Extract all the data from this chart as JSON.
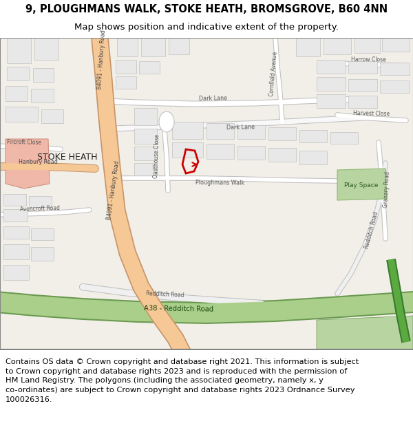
{
  "title_line1": "9, PLOUGHMANS WALK, STOKE HEATH, BROMSGROVE, B60 4NN",
  "title_line2": "Map shows position and indicative extent of the property.",
  "footer_text": "Contains OS data © Crown copyright and database right 2021. This information is subject\nto Crown copyright and database rights 2023 and is reproduced with the permission of\nHM Land Registry. The polygons (including the associated geometry, namely x, y\nco-ordinates) are subject to Crown copyright and database rights 2023 Ordnance Survey\n100026316.",
  "map_bg": "#f2efe9",
  "road_orange": "#f5c896",
  "road_orange_border": "#c8956a",
  "road_white": "#ffffff",
  "road_gray_border": "#bbbbbb",
  "green_a38": "#aacf8a",
  "green_a38_border": "#6a9a50",
  "green_area": "#b8d4a0",
  "green_dark": "#3a7a30",
  "building_fill": "#e8e8e8",
  "building_border": "#c0c0c0",
  "highlight_pink": "#f0b8a8",
  "highlight_pink_border": "#d09080",
  "red_outline": "#cc0000",
  "text_dark": "#333333",
  "road_label_color": "#555555",
  "stoke_heath_color": "#222222",
  "title_fs": 10.5,
  "subtitle_fs": 9.5,
  "footer_fs": 8.2,
  "road_label_fs": 5.8,
  "area_label_fs": 7.5
}
